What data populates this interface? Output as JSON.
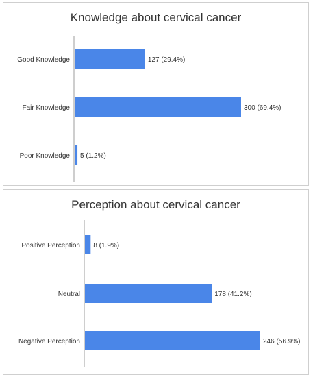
{
  "colors": {
    "bar": "#4a86e8",
    "axis": "#9e9e9e"
  },
  "chart_data": [
    {
      "type": "bar",
      "orientation": "horizontal",
      "title": "Knowledge about cervical cancer",
      "categories": [
        "Good Knowledge",
        "Fair Knowledge",
        "Poor Knowledge"
      ],
      "values": [
        127,
        300,
        5
      ],
      "data_labels": [
        "127 (29.4%)",
        "300 (69.4%)",
        "5 (1.2%)"
      ],
      "xlim": [
        0,
        300
      ],
      "grid": false
    },
    {
      "type": "bar",
      "orientation": "horizontal",
      "title": "Perception about cervical cancer",
      "categories": [
        "Positive Perception",
        "Neutral",
        "Negative Perception"
      ],
      "values": [
        8,
        178,
        246
      ],
      "data_labels": [
        "8 (1.9%)",
        "178 (41.2%)",
        "246 (56.9%)"
      ],
      "xlim": [
        0,
        246
      ],
      "grid": false
    }
  ]
}
